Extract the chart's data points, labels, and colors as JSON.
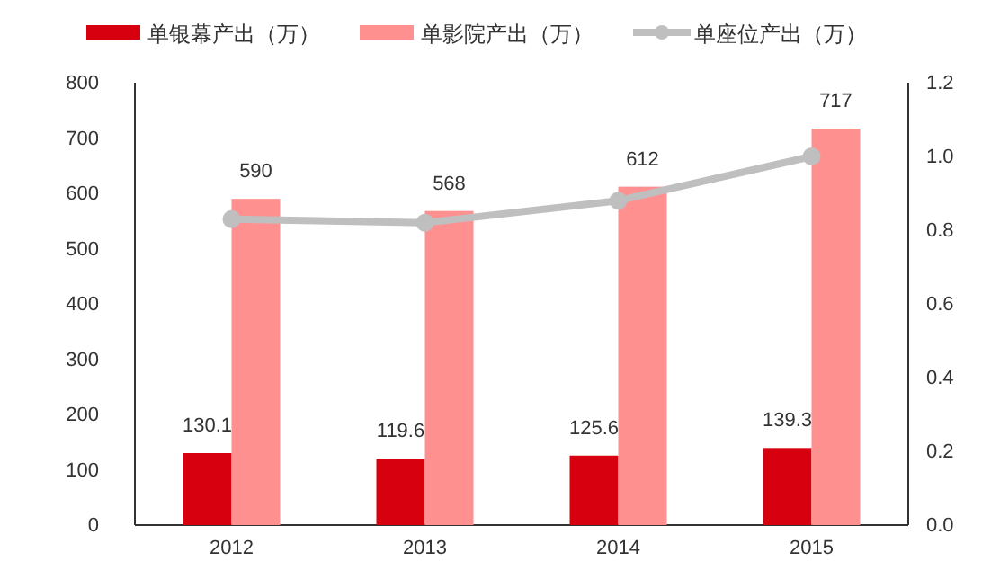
{
  "chart_data": {
    "type": "bar",
    "categories": [
      "2012",
      "2013",
      "2014",
      "2015"
    ],
    "series": [
      {
        "name": "单银幕产出（万）",
        "color": "#d7000f",
        "values": [
          130.1,
          119.6,
          125.6,
          139.3
        ],
        "value_labels": [
          "130.1",
          "119.6",
          "125.6",
          "139.3"
        ]
      },
      {
        "name": "单影院产出（万）",
        "color": "#ff9090",
        "values": [
          590,
          568,
          612,
          717
        ],
        "value_labels": [
          "590",
          "568",
          "612",
          "717"
        ]
      },
      {
        "name": "单座位产出（万）",
        "type": "line",
        "axis": "y2",
        "color": "#bfbfbf",
        "marker": "circle",
        "values": [
          0.83,
          0.82,
          0.88,
          1.0
        ]
      }
    ],
    "legend": "top",
    "ylim": [
      0,
      800
    ],
    "yticks": [
      0,
      100,
      200,
      300,
      400,
      500,
      600,
      700,
      800
    ],
    "y2lim": [
      0,
      1.2
    ],
    "y2ticks": [
      {
        "value": 0,
        "label": "0.0"
      },
      {
        "value": 0.2,
        "label": "0.2"
      },
      {
        "value": 0.4,
        "label": "0.4"
      },
      {
        "value": 0.6,
        "label": "0.6"
      },
      {
        "value": 0.8,
        "label": "0.8"
      },
      {
        "value": 1,
        "label": "1.0"
      },
      {
        "value": 1.2,
        "label": "1.2"
      }
    ]
  }
}
